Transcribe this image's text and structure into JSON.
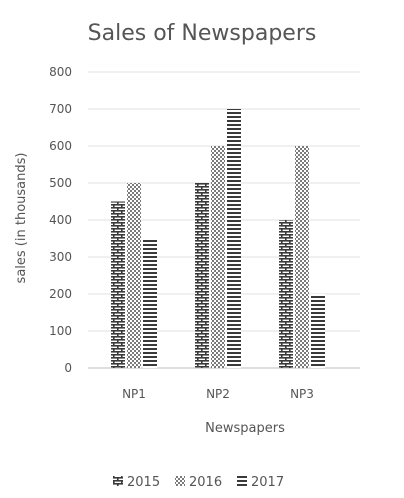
{
  "chart_data": {
    "type": "bar",
    "title": "Sales of Newspapers",
    "xlabel": "Newspapers",
    "ylabel": "sales (in thousands)",
    "categories": [
      "NP1",
      "NP2",
      "NP3"
    ],
    "series": [
      {
        "name": "2015",
        "values": [
          450,
          500,
          400
        ]
      },
      {
        "name": "2016",
        "values": [
          500,
          600,
          600
        ]
      },
      {
        "name": "2017",
        "values": [
          350,
          700,
          200
        ]
      }
    ],
    "ylim": [
      0,
      800
    ],
    "yticks": [
      0,
      100,
      200,
      300,
      400,
      500,
      600,
      700,
      800
    ],
    "grid": true,
    "legend_position": "bottom",
    "series_colors": [
      "#333333",
      "#666666",
      "#333333"
    ]
  }
}
